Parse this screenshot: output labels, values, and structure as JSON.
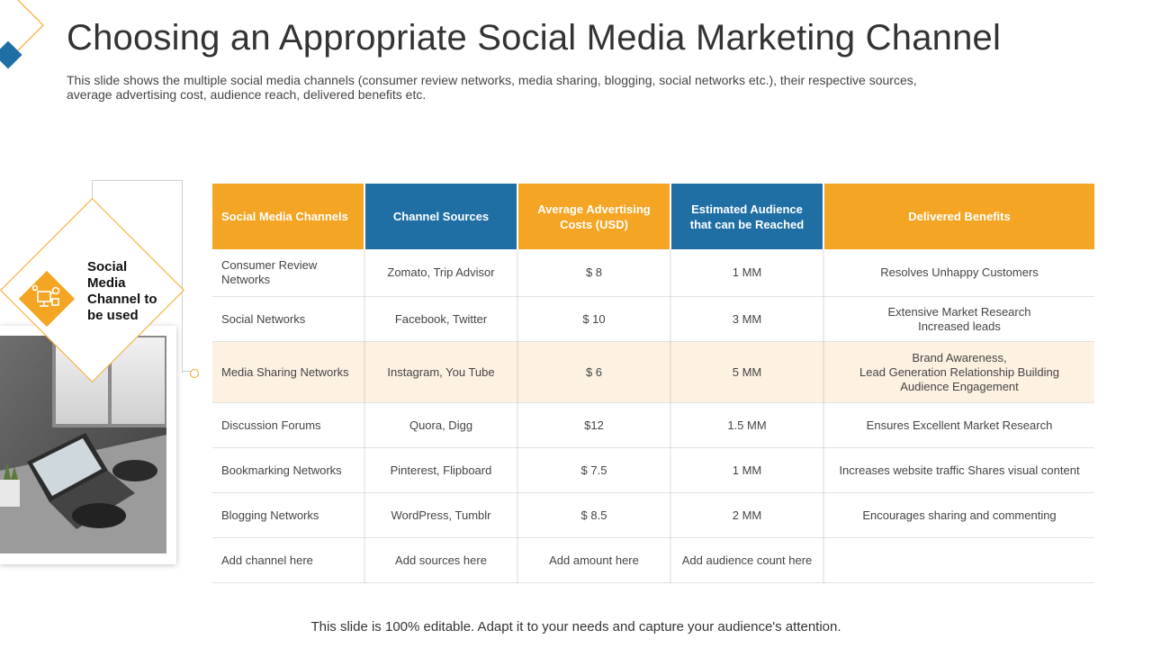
{
  "title": "Choosing an Appropriate Social Media Marketing Channel",
  "subtitle": "This slide shows the multiple social media channels (consumer review networks, media sharing, blogging, social networks etc.), their respective sources, average advertising cost, audience reach, delivered benefits etc.",
  "side_label": "Social Media Channel to be used",
  "colors": {
    "orange": "#f5a524",
    "blue": "#1f6fa5",
    "highlight": "#fdf1e2"
  },
  "icons": {
    "channel": "social-media-network-icon"
  },
  "table": {
    "headers": [
      "Social Media Channels",
      "Channel Sources",
      "Average Advertising Costs (USD)",
      "Estimated Audience that can be Reached",
      "Delivered Benefits"
    ],
    "rows": [
      [
        "Consumer Review Networks",
        "Zomato, Trip Advisor",
        "$ 8",
        "1 MM",
        "Resolves Unhappy Customers"
      ],
      [
        "Social Networks",
        "Facebook, Twitter",
        "$ 10",
        "3 MM",
        "Extensive Market Research\nIncreased leads"
      ],
      [
        "Media Sharing Networks",
        "Instagram, You Tube",
        "$ 6",
        "5 MM",
        "Brand Awareness,\nLead Generation Relationship Building\nAudience Engagement"
      ],
      [
        "Discussion Forums",
        "Quora, Digg",
        "$12",
        "1.5 MM",
        "Ensures Excellent Market Research"
      ],
      [
        "Bookmarking Networks",
        "Pinterest, Flipboard",
        "$ 7.5",
        "1 MM",
        "Increases website traffic Shares visual content"
      ],
      [
        "Blogging Networks",
        "WordPress, Tumblr",
        "$ 8.5",
        "2 MM",
        "Encourages sharing and commenting"
      ],
      [
        "Add channel here",
        "Add sources here",
        "Add amount here",
        "Add audience count here",
        ""
      ]
    ]
  },
  "footer": "This slide is 100% editable. Adapt it to your needs and capture your audience's attention."
}
